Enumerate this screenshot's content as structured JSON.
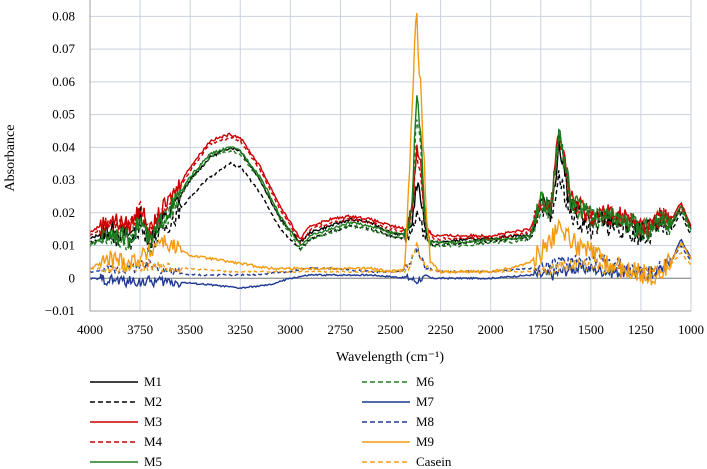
{
  "chart_data": {
    "type": "line",
    "title": "",
    "xlabel": "Wavelength (cm⁻¹)",
    "ylabel": "Absorbance",
    "xlim": [
      4000,
      1000
    ],
    "ylim": [
      -0.01,
      0.085
    ],
    "x_reversed": true,
    "x_ticks": [
      "4000",
      "3750",
      "3500",
      "3250",
      "3000",
      "2750",
      "2500",
      "2250",
      "2000",
      "1750",
      "1500",
      "1250",
      "1000"
    ],
    "y_ticks": [
      "−0.01",
      "0",
      "0.01",
      "0.02",
      "0.03",
      "0.04",
      "0.05",
      "0.06",
      "0.07",
      "0.08"
    ],
    "grid": true,
    "legend_position": "bottom",
    "series": [
      {
        "name": "M1",
        "color": "#000000",
        "dash": "solid",
        "x": [
          4000,
          3900,
          3800,
          3750,
          3700,
          3650,
          3600,
          3500,
          3400,
          3300,
          3250,
          3150,
          3050,
          2950,
          2900,
          2800,
          2700,
          2600,
          2500,
          2420,
          2390,
          2370,
          2350,
          2330,
          2310,
          2280,
          2250,
          2100,
          2000,
          1900,
          1800,
          1750,
          1700,
          1660,
          1640,
          1600,
          1550,
          1500,
          1450,
          1400,
          1350,
          1300,
          1250,
          1200,
          1150,
          1100,
          1050,
          1000
        ],
        "y": [
          0.012,
          0.015,
          0.013,
          0.02,
          0.012,
          0.017,
          0.02,
          0.03,
          0.037,
          0.04,
          0.039,
          0.03,
          0.018,
          0.011,
          0.014,
          0.016,
          0.018,
          0.017,
          0.014,
          0.013,
          0.018,
          0.029,
          0.025,
          0.017,
          0.012,
          0.011,
          0.011,
          0.012,
          0.012,
          0.013,
          0.013,
          0.025,
          0.02,
          0.04,
          0.036,
          0.022,
          0.02,
          0.017,
          0.018,
          0.018,
          0.017,
          0.016,
          0.014,
          0.015,
          0.018,
          0.016,
          0.022,
          0.015
        ]
      },
      {
        "name": "M2",
        "color": "#000000",
        "dash": "dashed",
        "x": [
          4000,
          3900,
          3800,
          3750,
          3700,
          3650,
          3600,
          3500,
          3400,
          3300,
          3250,
          3150,
          3050,
          2950,
          2900,
          2800,
          2700,
          2600,
          2500,
          2420,
          2390,
          2370,
          2350,
          2330,
          2310,
          2280,
          2250,
          2100,
          2000,
          1900,
          1800,
          1750,
          1700,
          1660,
          1640,
          1600,
          1550,
          1500,
          1450,
          1400,
          1350,
          1300,
          1250,
          1200,
          1150,
          1100,
          1050,
          1000
        ],
        "y": [
          0.011,
          0.013,
          0.011,
          0.016,
          0.01,
          0.014,
          0.017,
          0.025,
          0.031,
          0.035,
          0.034,
          0.026,
          0.015,
          0.009,
          0.012,
          0.014,
          0.016,
          0.015,
          0.013,
          0.012,
          0.014,
          0.019,
          0.017,
          0.013,
          0.011,
          0.01,
          0.01,
          0.011,
          0.011,
          0.012,
          0.012,
          0.02,
          0.018,
          0.03,
          0.028,
          0.019,
          0.017,
          0.015,
          0.016,
          0.016,
          0.015,
          0.014,
          0.013,
          0.013,
          0.016,
          0.014,
          0.02,
          0.013
        ]
      },
      {
        "name": "M3",
        "color": "#cc0000",
        "dash": "solid",
        "x": [
          4000,
          3900,
          3800,
          3750,
          3700,
          3650,
          3600,
          3500,
          3400,
          3300,
          3250,
          3150,
          3050,
          2950,
          2900,
          2800,
          2700,
          2600,
          2500,
          2420,
          2390,
          2370,
          2350,
          2330,
          2310,
          2280,
          2250,
          2100,
          2000,
          1900,
          1800,
          1750,
          1700,
          1660,
          1640,
          1600,
          1550,
          1500,
          1450,
          1400,
          1350,
          1300,
          1250,
          1200,
          1150,
          1100,
          1050,
          1000
        ],
        "y": [
          0.014,
          0.018,
          0.016,
          0.022,
          0.014,
          0.02,
          0.024,
          0.034,
          0.042,
          0.044,
          0.043,
          0.034,
          0.022,
          0.012,
          0.016,
          0.018,
          0.019,
          0.018,
          0.016,
          0.015,
          0.022,
          0.04,
          0.035,
          0.02,
          0.014,
          0.013,
          0.013,
          0.013,
          0.013,
          0.014,
          0.015,
          0.024,
          0.022,
          0.045,
          0.04,
          0.024,
          0.022,
          0.019,
          0.02,
          0.02,
          0.019,
          0.018,
          0.016,
          0.016,
          0.02,
          0.018,
          0.023,
          0.016
        ]
      },
      {
        "name": "M4",
        "color": "#cc0000",
        "dash": "dashed",
        "x": [
          4000,
          3900,
          3800,
          3750,
          3700,
          3650,
          3600,
          3500,
          3400,
          3300,
          3250,
          3150,
          3050,
          2950,
          2900,
          2800,
          2700,
          2600,
          2500,
          2420,
          2390,
          2370,
          2350,
          2330,
          2310,
          2280,
          2250,
          2100,
          2000,
          1900,
          1800,
          1750,
          1700,
          1660,
          1640,
          1600,
          1550,
          1500,
          1450,
          1400,
          1350,
          1300,
          1250,
          1200,
          1150,
          1100,
          1050,
          1000
        ],
        "y": [
          0.013,
          0.017,
          0.015,
          0.021,
          0.013,
          0.019,
          0.023,
          0.033,
          0.041,
          0.043,
          0.042,
          0.033,
          0.021,
          0.011,
          0.015,
          0.017,
          0.018,
          0.017,
          0.015,
          0.014,
          0.021,
          0.038,
          0.033,
          0.019,
          0.013,
          0.012,
          0.012,
          0.012,
          0.012,
          0.013,
          0.014,
          0.023,
          0.021,
          0.043,
          0.038,
          0.023,
          0.021,
          0.018,
          0.019,
          0.019,
          0.018,
          0.017,
          0.015,
          0.015,
          0.019,
          0.017,
          0.022,
          0.015
        ]
      },
      {
        "name": "M5",
        "color": "#1e7b1e",
        "dash": "solid",
        "x": [
          4000,
          3900,
          3800,
          3750,
          3700,
          3650,
          3600,
          3500,
          3400,
          3300,
          3250,
          3150,
          3050,
          2950,
          2900,
          2800,
          2700,
          2600,
          2500,
          2420,
          2390,
          2370,
          2350,
          2330,
          2310,
          2280,
          2250,
          2100,
          2000,
          1900,
          1800,
          1750,
          1700,
          1660,
          1640,
          1600,
          1550,
          1500,
          1450,
          1400,
          1350,
          1300,
          1250,
          1200,
          1150,
          1100,
          1050,
          1000
        ],
        "y": [
          0.01,
          0.014,
          0.012,
          0.018,
          0.011,
          0.017,
          0.021,
          0.031,
          0.038,
          0.04,
          0.039,
          0.031,
          0.019,
          0.01,
          0.013,
          0.015,
          0.017,
          0.016,
          0.014,
          0.013,
          0.025,
          0.057,
          0.045,
          0.02,
          0.012,
          0.011,
          0.011,
          0.011,
          0.012,
          0.012,
          0.013,
          0.025,
          0.021,
          0.046,
          0.04,
          0.024,
          0.021,
          0.019,
          0.019,
          0.019,
          0.018,
          0.017,
          0.015,
          0.015,
          0.019,
          0.017,
          0.022,
          0.015
        ]
      },
      {
        "name": "M6",
        "color": "#1e7b1e",
        "dash": "dashed",
        "x": [
          4000,
          3900,
          3800,
          3750,
          3700,
          3650,
          3600,
          3500,
          3400,
          3300,
          3250,
          3150,
          3050,
          2950,
          2900,
          2800,
          2700,
          2600,
          2500,
          2420,
          2390,
          2370,
          2350,
          2330,
          2310,
          2280,
          2250,
          2100,
          2000,
          1900,
          1800,
          1750,
          1700,
          1660,
          1640,
          1600,
          1550,
          1500,
          1450,
          1400,
          1350,
          1300,
          1250,
          1200,
          1150,
          1100,
          1050,
          1000
        ],
        "y": [
          0.01,
          0.013,
          0.011,
          0.017,
          0.01,
          0.016,
          0.02,
          0.03,
          0.037,
          0.039,
          0.038,
          0.03,
          0.018,
          0.009,
          0.012,
          0.014,
          0.016,
          0.015,
          0.013,
          0.012,
          0.022,
          0.05,
          0.04,
          0.018,
          0.011,
          0.01,
          0.01,
          0.01,
          0.011,
          0.011,
          0.012,
          0.023,
          0.02,
          0.044,
          0.038,
          0.023,
          0.02,
          0.018,
          0.018,
          0.018,
          0.017,
          0.016,
          0.014,
          0.014,
          0.018,
          0.016,
          0.021,
          0.014
        ]
      },
      {
        "name": "M7",
        "color": "#1f3a93",
        "dash": "solid",
        "x": [
          4000,
          3800,
          3600,
          3400,
          3250,
          3100,
          3000,
          2900,
          2800,
          2600,
          2400,
          2370,
          2350,
          2200,
          2000,
          1800,
          1700,
          1600,
          1500,
          1400,
          1300,
          1200,
          1150,
          1100,
          1050,
          1000
        ],
        "y": [
          0.0,
          -0.001,
          -0.001,
          -0.002,
          -0.003,
          -0.002,
          0.0,
          0.001,
          0.001,
          0.001,
          0.0,
          -0.001,
          0.0,
          0.0,
          0.0,
          0.001,
          0.001,
          0.003,
          0.003,
          0.002,
          0.002,
          0.001,
          0.003,
          0.005,
          0.012,
          0.006
        ]
      },
      {
        "name": "M8",
        "color": "#1f3a93",
        "dash": "dashed",
        "x": [
          4000,
          3800,
          3700,
          3600,
          3500,
          3300,
          3200,
          3000,
          2900,
          2800,
          2600,
          2450,
          2400,
          2370,
          2350,
          2320,
          2250,
          2000,
          1800,
          1700,
          1600,
          1500,
          1400,
          1300,
          1200,
          1100,
          1050,
          1000
        ],
        "y": [
          0.002,
          0.003,
          0.004,
          0.002,
          0.001,
          0.001,
          0.001,
          0.002,
          0.003,
          0.003,
          0.002,
          0.002,
          0.004,
          0.009,
          0.006,
          0.003,
          0.002,
          0.002,
          0.003,
          0.004,
          0.006,
          0.006,
          0.005,
          0.003,
          0.002,
          0.005,
          0.01,
          0.005
        ]
      },
      {
        "name": "M9",
        "color": "#f39c12",
        "dash": "solid",
        "x": [
          4000,
          3900,
          3800,
          3700,
          3650,
          3600,
          3500,
          3400,
          3300,
          3200,
          3100,
          3000,
          2900,
          2800,
          2700,
          2600,
          2500,
          2430,
          2400,
          2380,
          2370,
          2360,
          2350,
          2340,
          2320,
          2300,
          2250,
          2100,
          2000,
          1900,
          1800,
          1750,
          1700,
          1650,
          1600,
          1550,
          1500,
          1450,
          1400,
          1300,
          1200,
          1150,
          1100,
          1050,
          1000
        ],
        "y": [
          0.003,
          0.006,
          0.005,
          0.008,
          0.012,
          0.01,
          0.007,
          0.006,
          0.005,
          0.004,
          0.003,
          0.003,
          0.003,
          0.003,
          0.003,
          0.003,
          0.002,
          0.003,
          0.04,
          0.07,
          0.083,
          0.065,
          0.06,
          0.045,
          0.02,
          0.005,
          0.002,
          0.002,
          0.002,
          0.003,
          0.005,
          0.008,
          0.012,
          0.015,
          0.012,
          0.009,
          0.008,
          0.006,
          0.004,
          0.002,
          0.001,
          0.002,
          0.005,
          0.011,
          0.006
        ]
      },
      {
        "name": "Casein",
        "color": "#f39c12",
        "dash": "dashed",
        "x": [
          4000,
          3800,
          3700,
          3600,
          3500,
          3300,
          3200,
          3000,
          2900,
          2800,
          2600,
          2450,
          2400,
          2370,
          2350,
          2320,
          2250,
          2000,
          1800,
          1700,
          1600,
          1500,
          1400,
          1300,
          1200,
          1100,
          1050,
          1000
        ],
        "y": [
          0.003,
          0.003,
          0.004,
          0.003,
          0.003,
          0.002,
          0.002,
          0.002,
          0.002,
          0.002,
          0.002,
          0.002,
          0.004,
          0.011,
          0.007,
          0.003,
          0.002,
          0.002,
          0.002,
          0.003,
          0.004,
          0.004,
          0.003,
          0.002,
          0.002,
          0.004,
          0.008,
          0.004
        ]
      }
    ]
  }
}
